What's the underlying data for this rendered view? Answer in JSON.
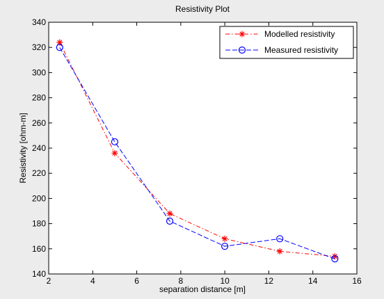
{
  "figure": {
    "background": "#ececec"
  },
  "chart_data": {
    "type": "line",
    "title": "Resistivity Plot",
    "xlabel": "separation distance [m]",
    "ylabel": "Resistivity [ohm-m]",
    "xlim": [
      2,
      16
    ],
    "ylim": [
      140,
      340
    ],
    "xticks": [
      2,
      4,
      6,
      8,
      10,
      12,
      14,
      16
    ],
    "yticks": [
      140,
      160,
      180,
      200,
      220,
      240,
      260,
      280,
      300,
      320,
      340
    ],
    "grid": false,
    "legend_position": "top-right",
    "series": [
      {
        "name": "Modelled resistivity",
        "color": "#ff0000",
        "line_style": "dash-dot",
        "marker": "asterisk",
        "x": [
          2.5,
          5,
          7.5,
          10,
          12.5,
          15
        ],
        "y": [
          324,
          236,
          188,
          168,
          158,
          154
        ]
      },
      {
        "name": "Measured resistivity",
        "color": "#0000ff",
        "line_style": "dashed",
        "marker": "circle",
        "x": [
          2.5,
          5,
          7.5,
          10,
          12.5,
          15
        ],
        "y": [
          320,
          245,
          182,
          162,
          168,
          152
        ]
      }
    ]
  }
}
